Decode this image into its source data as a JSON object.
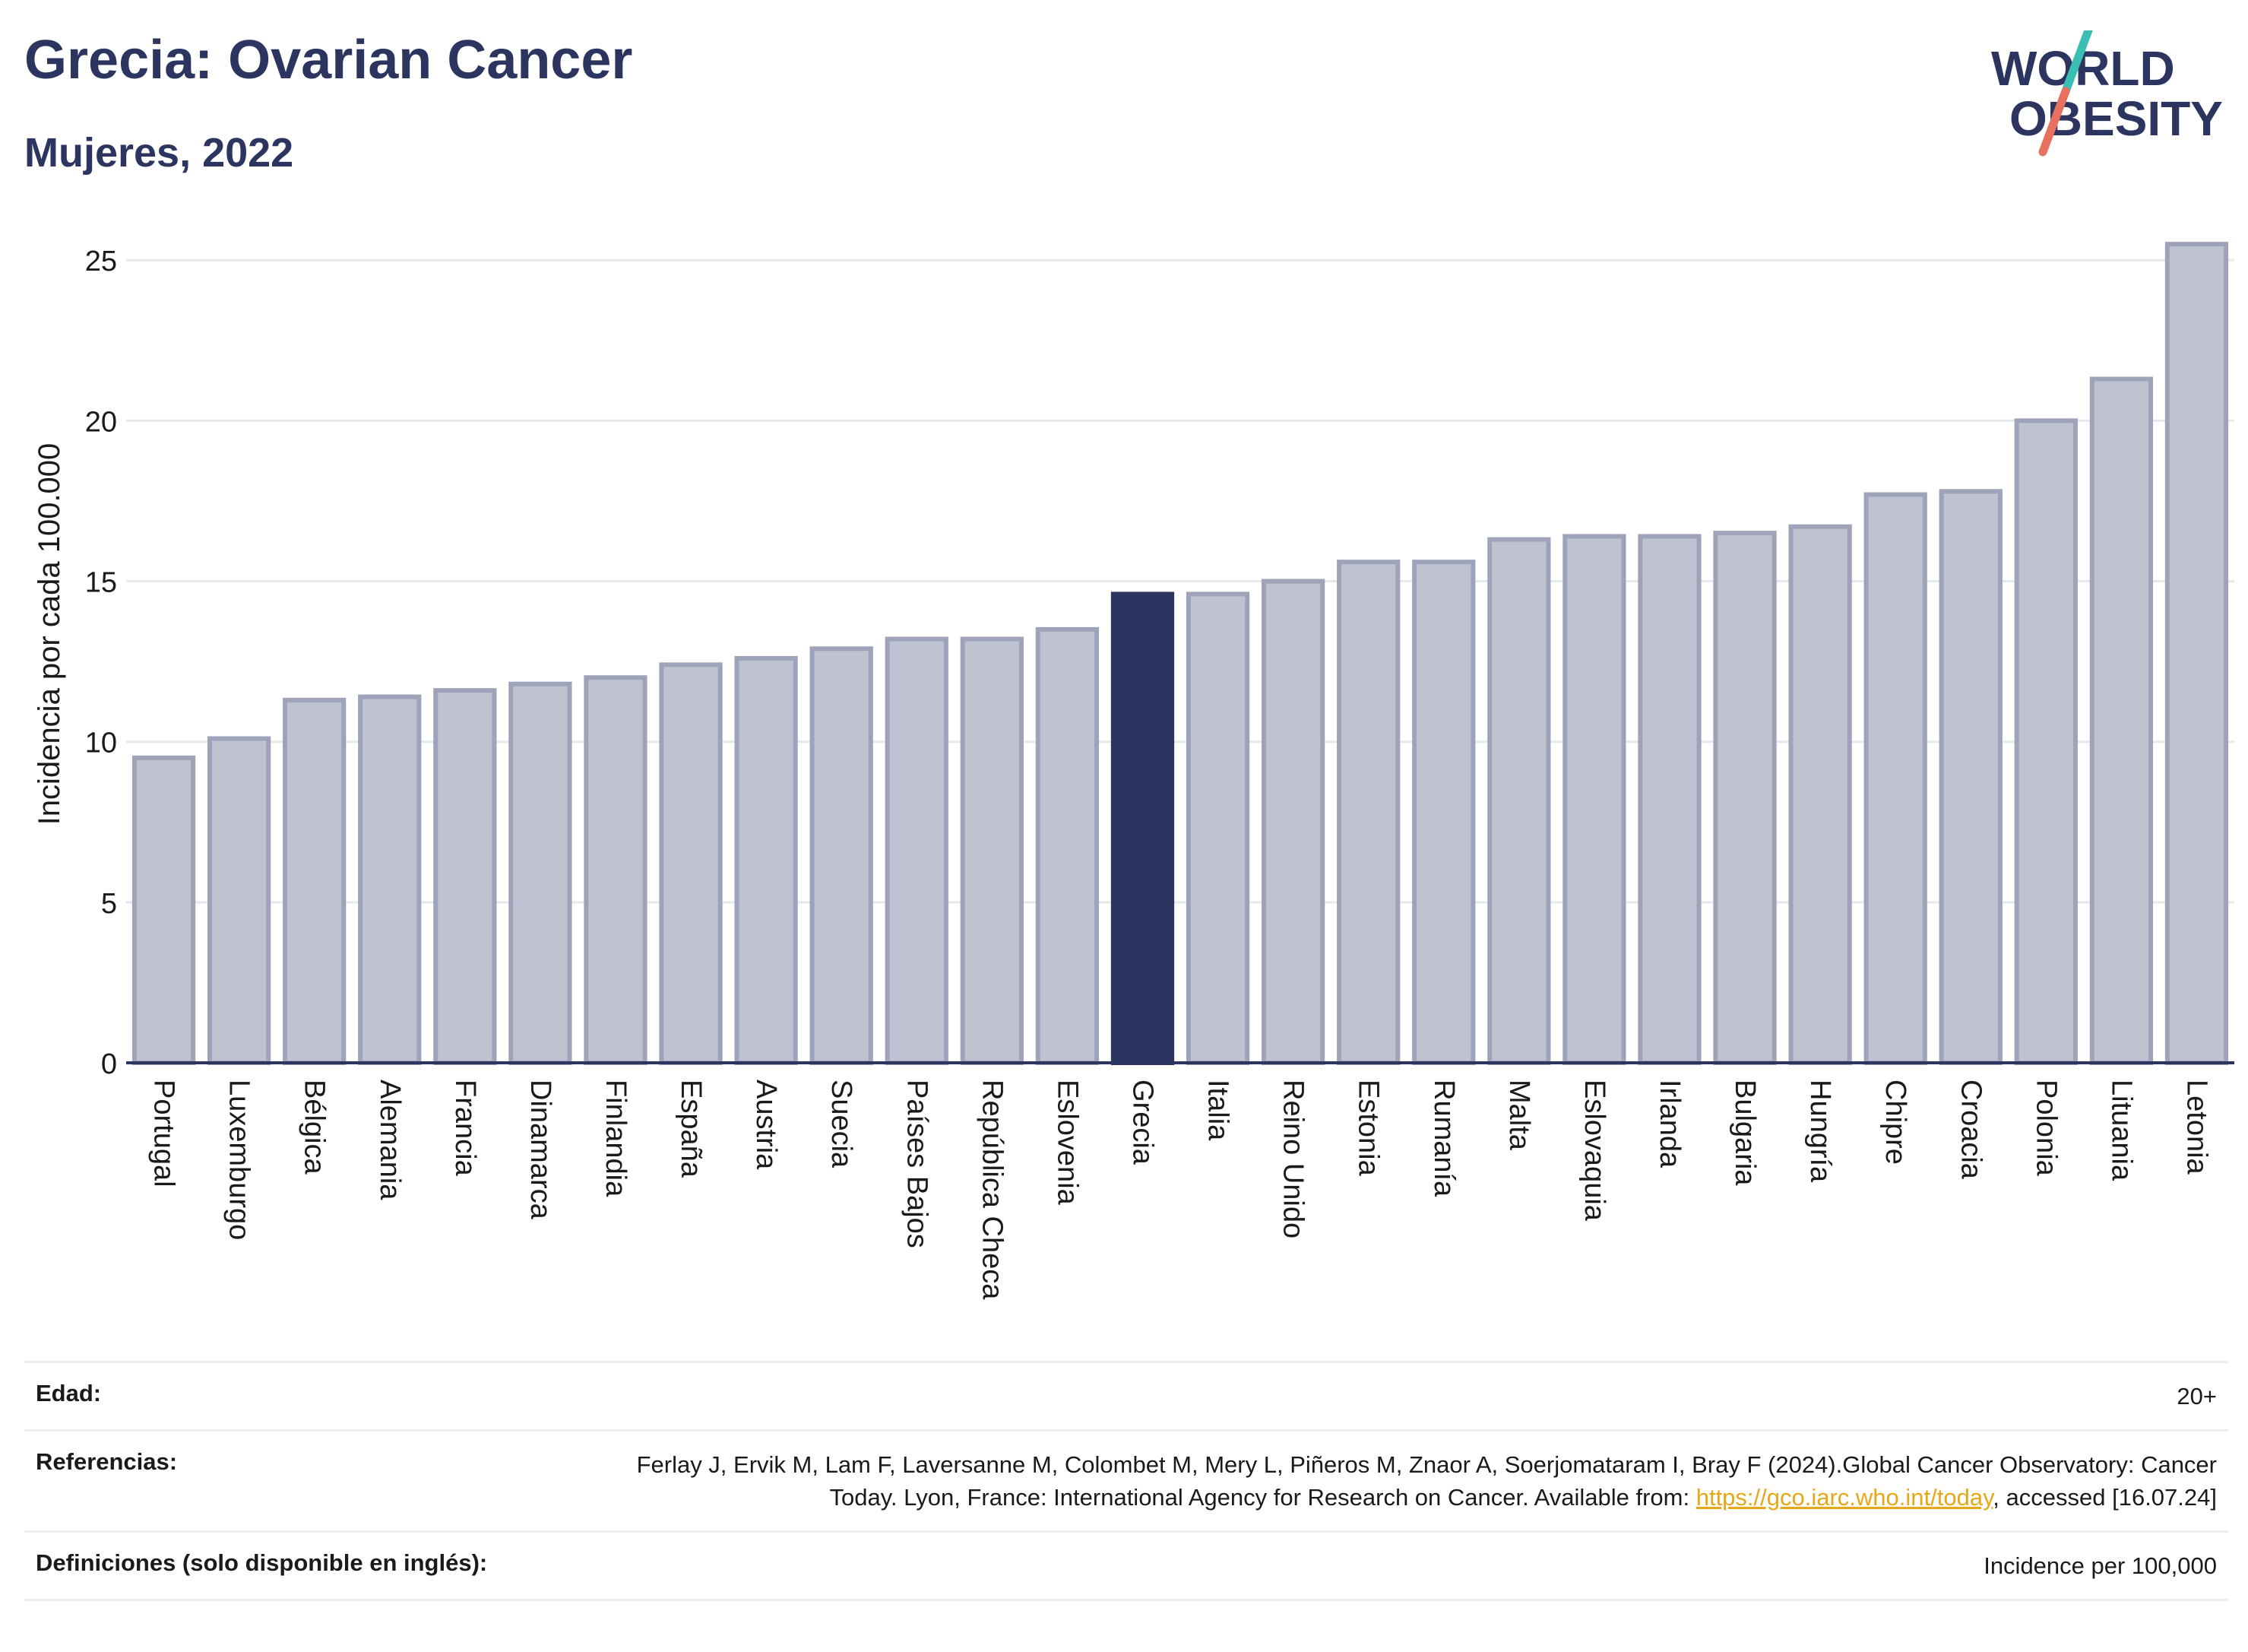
{
  "header": {
    "title": "Grecia: Ovarian Cancer",
    "subtitle": "Mujeres, 2022"
  },
  "logo": {
    "line1": "WORLD",
    "line2": "OBESITY",
    "text_color": "#2b355f",
    "slash_teal": "#3bbfb3",
    "slash_coral": "#e8705f"
  },
  "chart_data": {
    "type": "bar",
    "ylabel": "Incidencia por cada 100.000",
    "ylim": [
      0,
      26
    ],
    "yticks": [
      0,
      5,
      10,
      15,
      20,
      25
    ],
    "grid": true,
    "highlight": "Grecia",
    "colors": {
      "bar": "#bfc2d0",
      "bar_border": "#9ea3ba",
      "highlight": "#2b355f"
    },
    "categories": [
      "Portugal",
      "Luxemburgo",
      "Bélgica",
      "Alemania",
      "Francia",
      "Dinamarca",
      "Finlandia",
      "España",
      "Austria",
      "Suecia",
      "Países Bajos",
      "República Checa",
      "Eslovenia",
      "Grecia",
      "Italia",
      "Reino Unido",
      "Estonia",
      "Rumanía",
      "Malta",
      "Eslovaquia",
      "Irlanda",
      "Bulgaria",
      "Hungría",
      "Chipre",
      "Croacia",
      "Polonia",
      "Lituania",
      "Letonia"
    ],
    "values": [
      9.5,
      10.1,
      11.3,
      11.4,
      11.6,
      11.8,
      12.0,
      12.4,
      12.6,
      12.9,
      13.2,
      13.2,
      13.5,
      14.6,
      14.6,
      15.0,
      15.6,
      15.6,
      16.3,
      16.4,
      16.4,
      16.5,
      16.7,
      17.7,
      17.8,
      20.0,
      21.3,
      25.5
    ]
  },
  "footer": {
    "age_label": "Edad:",
    "age_value": "20+",
    "ref_label": "Referencias:",
    "ref_text_1": "Ferlay J, Ervik M, Lam F, Laversanne M, Colombet M, Mery L, Piñeros M, Znaor A, Soerjomataram I, Bray F (2024).Global Cancer Observatory: Cancer Today. Lyon, France: International Agency for Research on Cancer. Available from: ",
    "ref_link": "https://gco.iarc.who.int/today",
    "ref_text_2": ", accessed [16.07.24]",
    "def_label": "Definiciones (solo disponible en inglés):",
    "def_value": "Incidence per 100,000"
  }
}
